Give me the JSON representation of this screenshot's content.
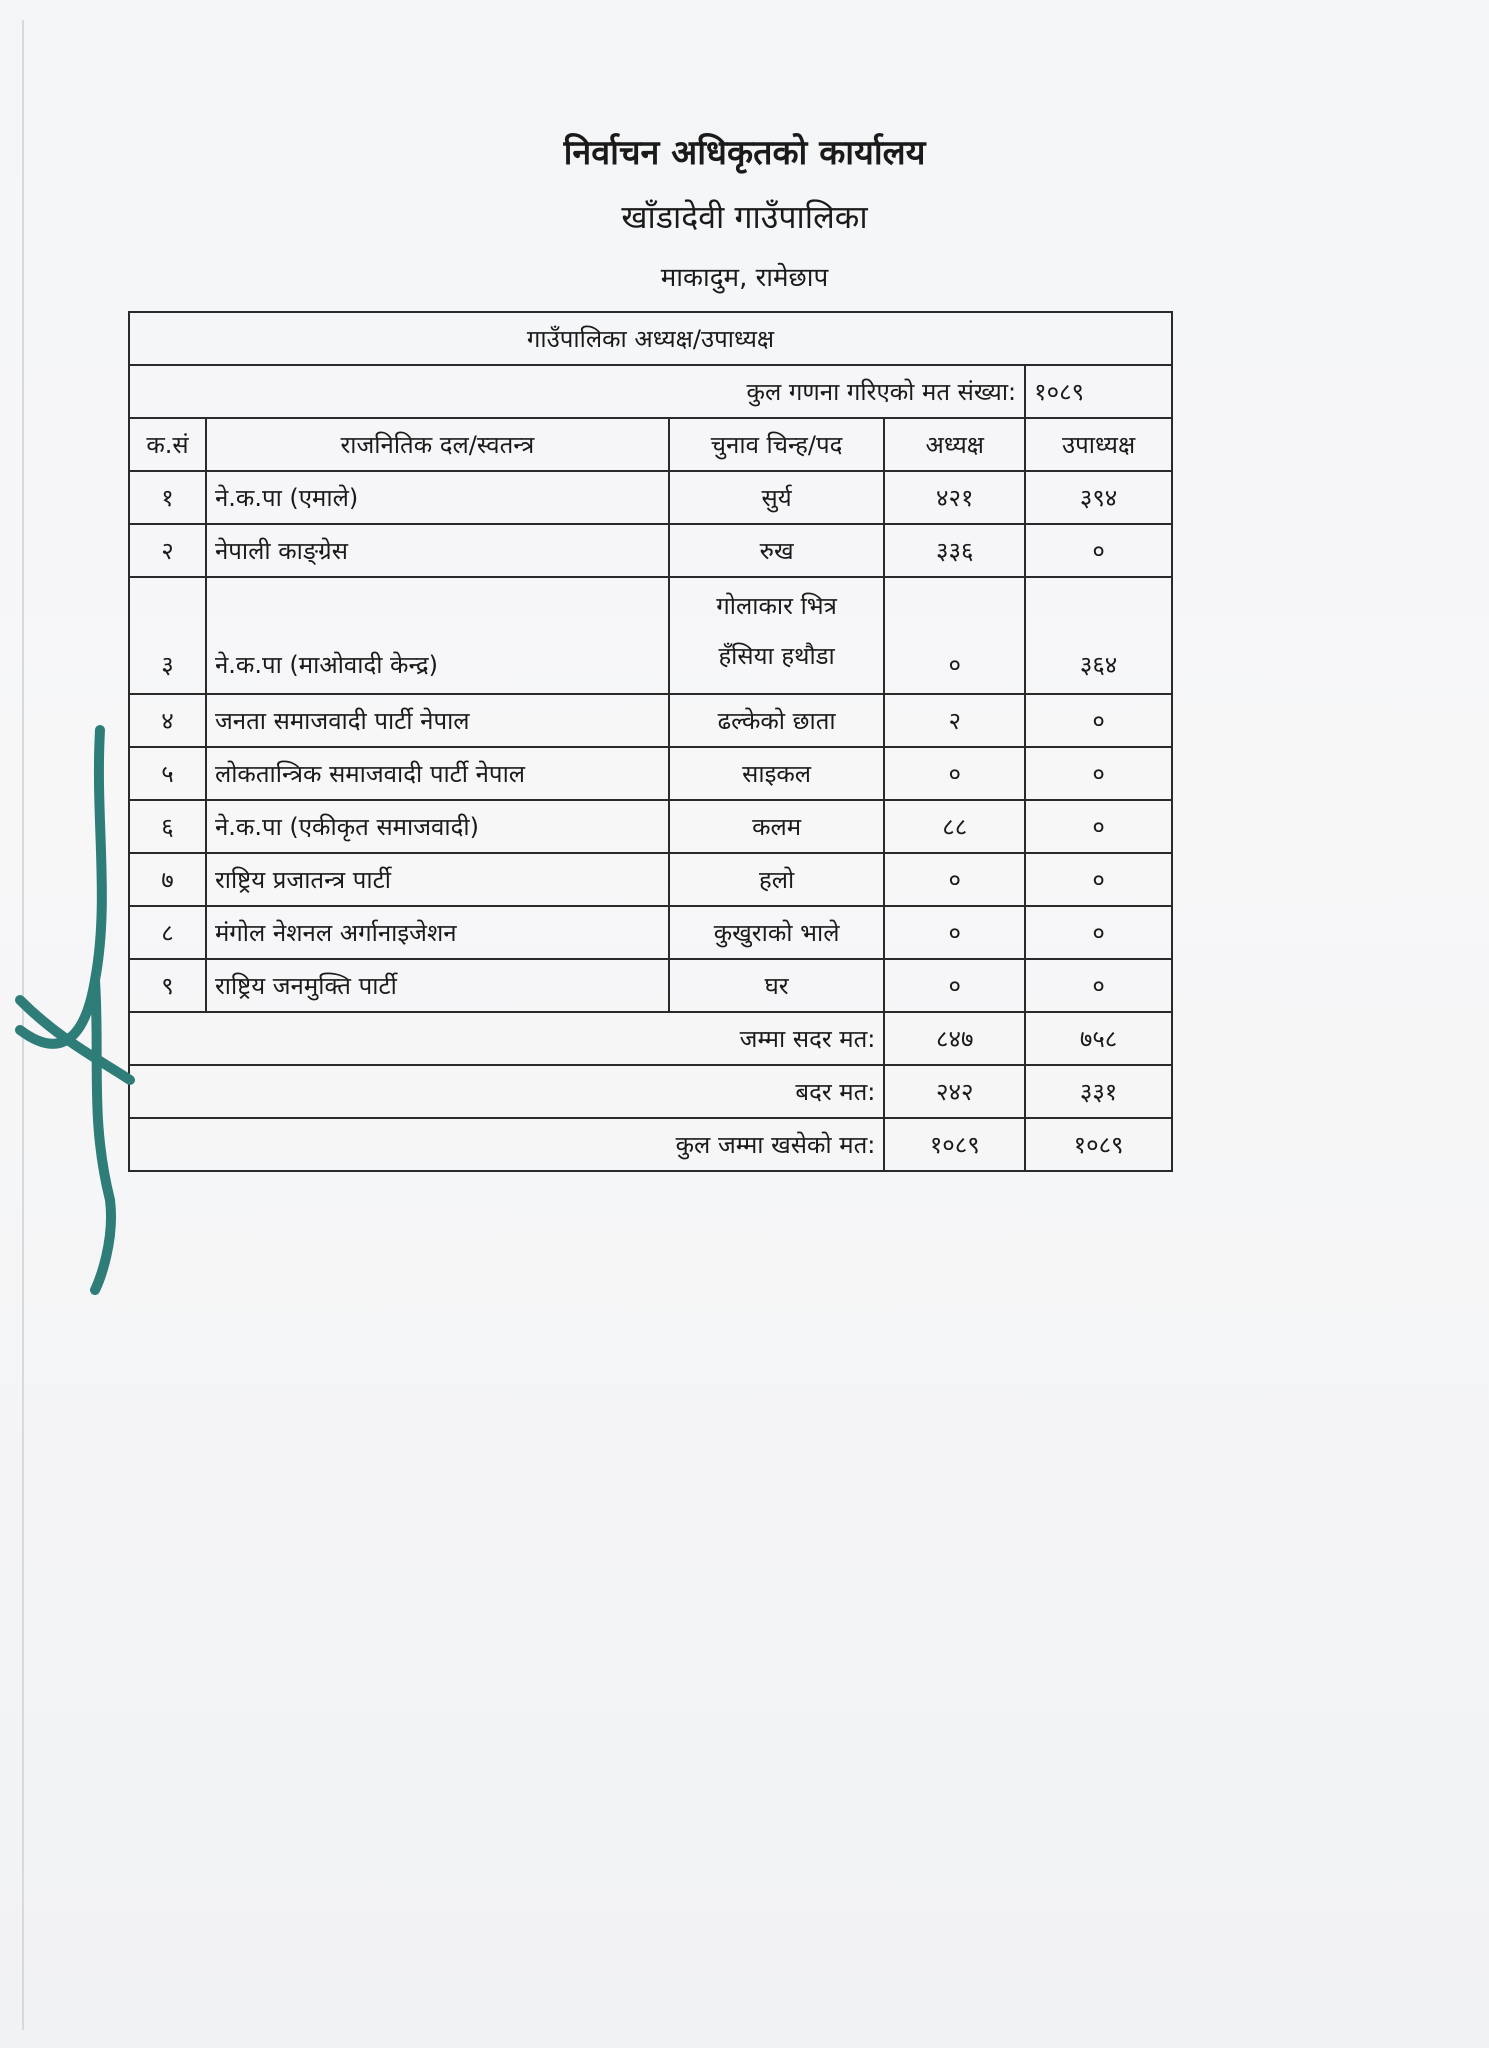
{
  "header": {
    "office": "निर्वाचन अधिकृतको कार्यालय",
    "municipality": "खाँडादेवी गाउँपालिका",
    "location": "माकादुम, रामेछाप"
  },
  "table": {
    "title": "गाउँपालिका अध्यक्ष/उपाध्यक्ष",
    "counted_label": "कुल गणना गरिएको मत संख्या:",
    "counted_value": "१०८९",
    "columns": [
      "क.सं",
      "राजनितिक दल/स्वतन्त्र",
      "चुनाव चिन्ह/पद",
      "अध्यक्ष",
      "उपाध्यक्ष"
    ],
    "rows": [
      {
        "sn": "१",
        "party": "ने.क.पा (एमाले)",
        "symbol": "सुर्य",
        "chair": "४२१",
        "vice": "३९४"
      },
      {
        "sn": "२",
        "party": "नेपाली काङ्ग्रेस",
        "symbol": "रुख",
        "chair": "३३६",
        "vice": "०"
      },
      {
        "sn": "३",
        "party": "ने.क.पा (माओवादी केन्द्र)",
        "symbol_line1": "गोलाकार भित्र",
        "symbol_line2": "हँसिया हथौडा",
        "chair": "०",
        "vice": "३६४"
      },
      {
        "sn": "४",
        "party": "जनता समाजवादी पार्टी नेपाल",
        "symbol": "ढल्केको छाता",
        "chair": "२",
        "vice": "०"
      },
      {
        "sn": "५",
        "party": "लोकतान्त्रिक समाजवादी पार्टी नेपाल",
        "symbol": "साइकल",
        "chair": "०",
        "vice": "०"
      },
      {
        "sn": "६",
        "party": "ने.क.पा (एकीकृत समाजवादी)",
        "symbol": "कलम",
        "chair": "८८",
        "vice": "०"
      },
      {
        "sn": "७",
        "party": "राष्ट्रिय प्रजातन्त्र पार्टी",
        "symbol": "हलो",
        "chair": "०",
        "vice": "०"
      },
      {
        "sn": "८",
        "party": "मंगोल नेशनल अर्गानाइजेशन",
        "symbol": "कुखुराको भाले",
        "chair": "०",
        "vice": "०"
      },
      {
        "sn": "९",
        "party": "राष्ट्रिय जनमुक्ति पार्टी",
        "symbol": "घर",
        "chair": "०",
        "vice": "०"
      }
    ],
    "valid": {
      "label": "जम्मा सदर मत:",
      "chair": "८४७",
      "vice": "७५८"
    },
    "invalid": {
      "label": "बदर मत:",
      "chair": "२४२",
      "vice": "३३१"
    },
    "total": {
      "label": "कुल जम्मा खसेको मत:",
      "chair": "१०८९",
      "vice": "१०८९"
    }
  },
  "colors": {
    "string": "#2f7d78",
    "paper": "#f4f5f7"
  }
}
